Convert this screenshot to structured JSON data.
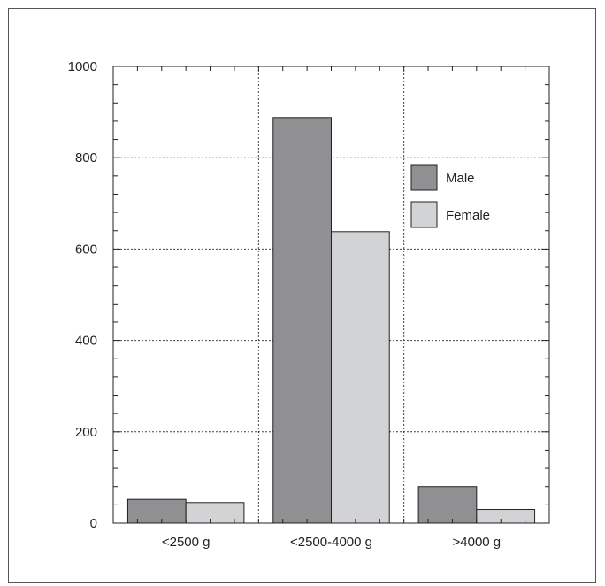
{
  "chart_data": {
    "type": "bar",
    "title": "",
    "xlabel": "",
    "ylabel": "",
    "categories": [
      "<2500 g",
      "<2500-4000 g",
      ">4000 g"
    ],
    "series": [
      {
        "name": "Male",
        "values": [
          52,
          888,
          80
        ],
        "color": "#909093"
      },
      {
        "name": "Female",
        "values": [
          45,
          638,
          30
        ],
        "color": "#d2d3d5"
      }
    ],
    "ylim": [
      0,
      1000
    ],
    "yticks": [
      0,
      200,
      400,
      600,
      800,
      1000
    ],
    "yticks_minor_step": 40,
    "grid": true,
    "legend_position": "top-right"
  }
}
